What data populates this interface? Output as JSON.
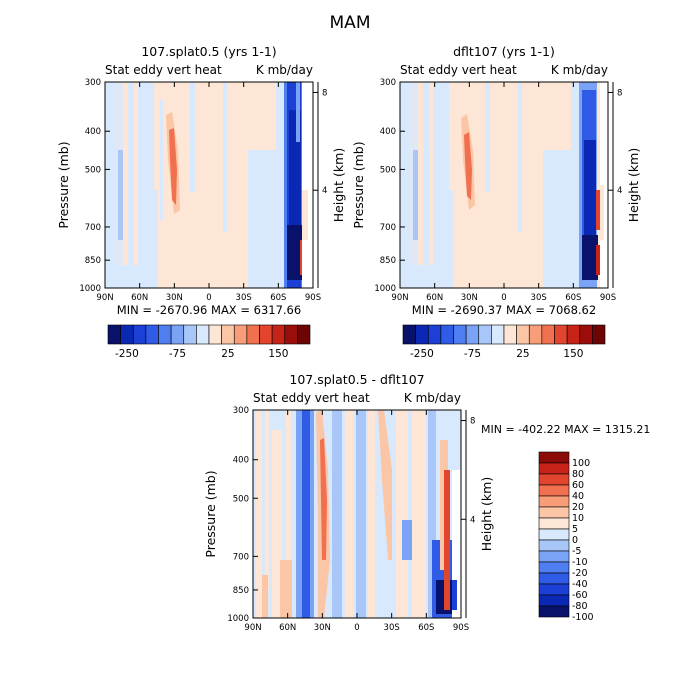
{
  "figure": {
    "title": "MAM"
  },
  "colors": {
    "panel_scale": [
      "#08126b",
      "#0a28b3",
      "#1c3fd6",
      "#2f5be6",
      "#4f7ef0",
      "#7aa3f5",
      "#a9c6f9",
      "#d8e8fd",
      "#fde6d6",
      "#fbc6a6",
      "#f79e78",
      "#f1704f",
      "#e2452e",
      "#c82318",
      "#9b0d0a",
      "#6e0505"
    ],
    "diff_scale": [
      "#08126b",
      "#0a28b3",
      "#1c3fd6",
      "#2f5be6",
      "#4f7ef0",
      "#7aa3f5",
      "#a9c6f9",
      "#d8e8fd",
      "#fde6d6",
      "#fbc6a6",
      "#f79e78",
      "#f1704f",
      "#e2452e",
      "#c82318",
      "#8b0b08"
    ]
  },
  "chart_data": [
    {
      "type": "heatmap",
      "title": "107.splat0.5 (yrs 1-1)",
      "left_label": "Stat eddy vert heat",
      "right_label": "K mb/day",
      "xlabel": "",
      "ylabel": "Pressure (mb)",
      "y2label": "Height (km)",
      "xticks": [
        "90N",
        "60N",
        "30N",
        "0",
        "30S",
        "60S",
        "90S"
      ],
      "yticks": [
        "300",
        "400",
        "500",
        "700",
        "850",
        "1000"
      ],
      "ytick_values": [
        300,
        400,
        500,
        700,
        850,
        1000
      ],
      "ylim": [
        300,
        1000
      ],
      "y2ticks": [
        "8",
        "4"
      ],
      "y2tick_values": [
        8,
        4
      ],
      "min_max": "MIN = -2670.96   MAX = 6317.66",
      "colorbar_labels": [
        "-250",
        "-75",
        "25",
        "150"
      ]
    },
    {
      "type": "heatmap",
      "title": "dflt107 (yrs 1-1)",
      "left_label": "Stat eddy vert heat",
      "right_label": "K mb/day",
      "xlabel": "",
      "ylabel": "Pressure (mb)",
      "y2label": "Height (km)",
      "xticks": [
        "90N",
        "60N",
        "30N",
        "0",
        "30S",
        "60S",
        "90S"
      ],
      "yticks": [
        "300",
        "400",
        "500",
        "700",
        "850",
        "1000"
      ],
      "ytick_values": [
        300,
        400,
        500,
        700,
        850,
        1000
      ],
      "ylim": [
        300,
        1000
      ],
      "y2ticks": [
        "8",
        "4"
      ],
      "y2tick_values": [
        8,
        4
      ],
      "min_max": "MIN = -2690.37   MAX = 7068.62",
      "colorbar_labels": [
        "-250",
        "-75",
        "25",
        "150"
      ]
    },
    {
      "type": "heatmap",
      "title": "107.splat0.5 - dflt107",
      "left_label": "Stat eddy vert heat",
      "right_label": "K mb/day",
      "xlabel": "",
      "ylabel": "Pressure (mb)",
      "y2label": "Height (km)",
      "xticks": [
        "90N",
        "60N",
        "30N",
        "0",
        "30S",
        "60S",
        "90S"
      ],
      "yticks": [
        "300",
        "400",
        "500",
        "700",
        "850",
        "1000"
      ],
      "ytick_values": [
        300,
        400,
        500,
        700,
        850,
        1000
      ],
      "ylim": [
        300,
        1000
      ],
      "y2ticks": [
        "8",
        "4"
      ],
      "y2tick_values": [
        8,
        4
      ],
      "min_max": "MIN = -402.22   MAX = 1315.21",
      "colorbar_labels": [
        "100",
        "80",
        "60",
        "40",
        "20",
        "10",
        "5",
        "0",
        "-5",
        "-10",
        "-20",
        "-40",
        "-60",
        "-80",
        "-100"
      ]
    }
  ]
}
